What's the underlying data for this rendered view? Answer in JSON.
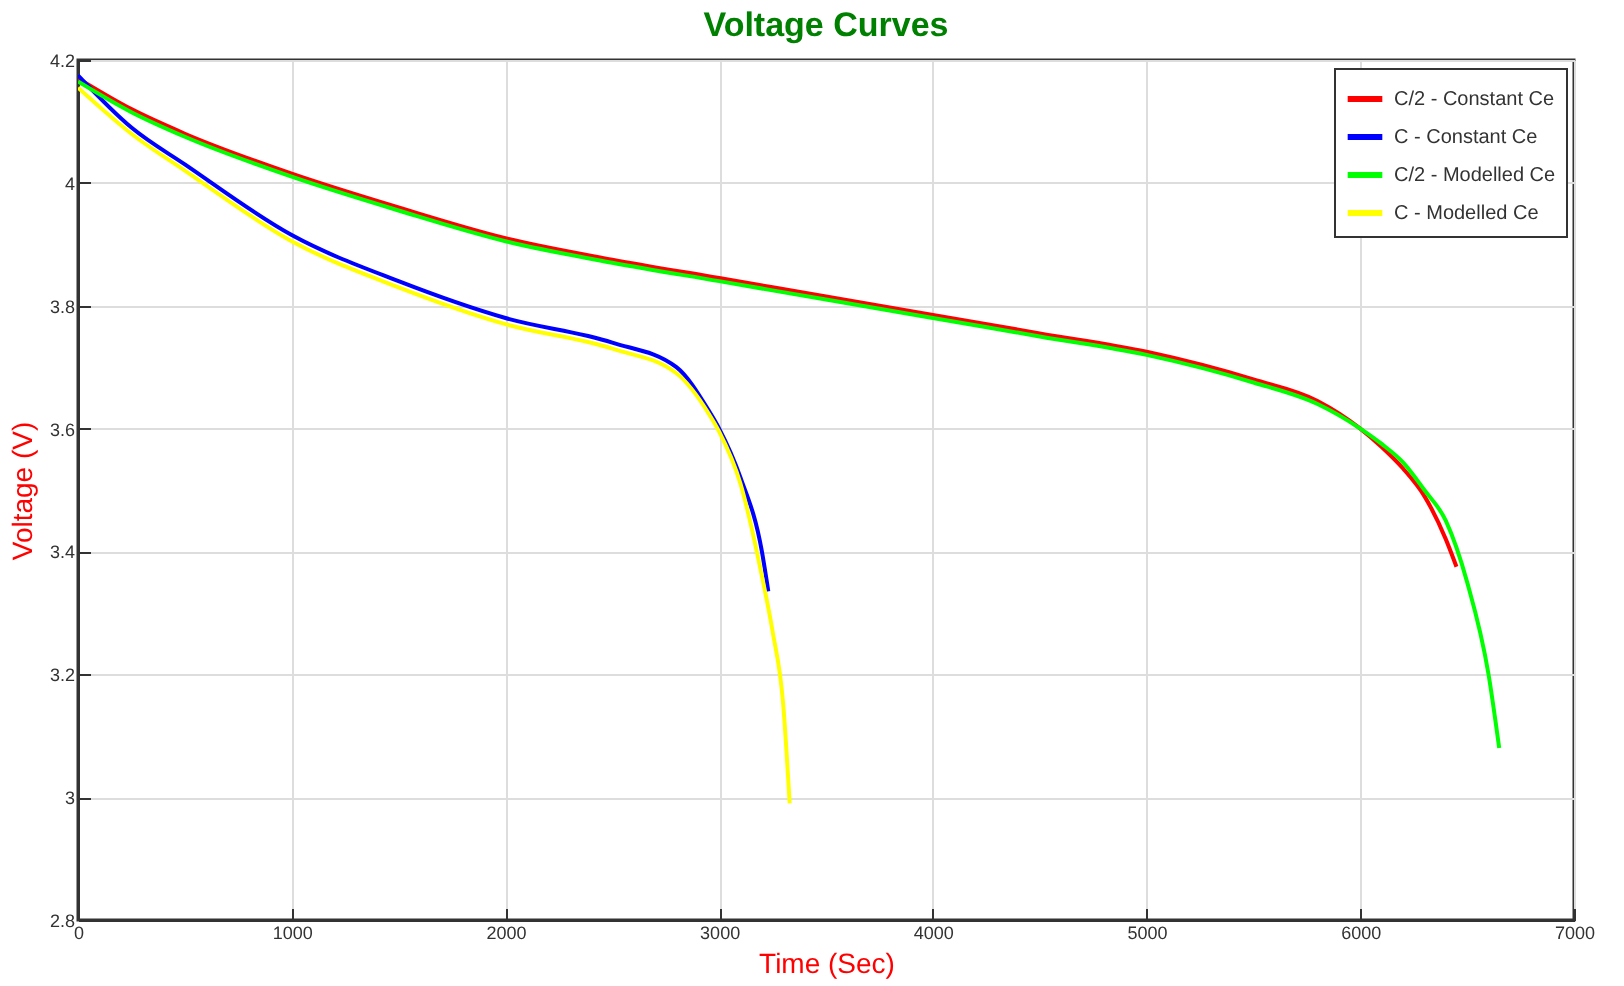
{
  "chart_data": {
    "type": "line",
    "title": "Voltage Curves",
    "xlabel": "Time (Sec)",
    "ylabel": "Voltage (V)",
    "xlim": [
      0,
      7000
    ],
    "ylim": [
      2.8,
      4.2
    ],
    "xticks": [
      0,
      1000,
      2000,
      3000,
      4000,
      5000,
      6000,
      7000
    ],
    "yticks": [
      2.8,
      3,
      3.2,
      3.4,
      3.6,
      3.8,
      4,
      4.2
    ],
    "grid": true,
    "legend": "top right",
    "line_style": "solid",
    "marker": "none",
    "series": [
      {
        "name": "C/2 - Constant Ce",
        "color": "#ff0000",
        "x": [
          0,
          250,
          500,
          1000,
          1500,
          2000,
          2500,
          3000,
          3500,
          4000,
          4500,
          5000,
          5500,
          5800,
          6000,
          6100,
          6200,
          6300,
          6400,
          6450
        ],
        "values": [
          4.17,
          4.12,
          4.08,
          4.015,
          3.96,
          3.91,
          3.875,
          3.845,
          3.815,
          3.785,
          3.755,
          3.725,
          3.68,
          3.645,
          3.6,
          3.57,
          3.535,
          3.49,
          3.42,
          3.375
        ]
      },
      {
        "name": "C - Constant Ce",
        "color": "#0000ff",
        "x": [
          0,
          250,
          500,
          1000,
          1500,
          2000,
          2500,
          2800,
          2950,
          3000,
          3100,
          3200,
          3230
        ],
        "values": [
          4.175,
          4.09,
          4.03,
          3.915,
          3.84,
          3.78,
          3.74,
          3.7,
          3.63,
          3.6,
          3.52,
          3.4,
          3.335
        ]
      },
      {
        "name": "C/2 - Modelled Ce",
        "color": "#00ff00",
        "x": [
          0,
          250,
          500,
          1000,
          1500,
          2000,
          2500,
          3000,
          3500,
          4000,
          4500,
          5000,
          5500,
          5800,
          6000,
          6100,
          6200,
          6300,
          6400,
          6500,
          6600,
          6650
        ],
        "values": [
          4.165,
          4.115,
          4.075,
          4.01,
          3.955,
          3.905,
          3.87,
          3.84,
          3.81,
          3.78,
          3.75,
          3.72,
          3.675,
          3.64,
          3.6,
          3.575,
          3.545,
          3.5,
          3.45,
          3.35,
          3.2,
          3.08
        ]
      },
      {
        "name": "C - Modelled Ce",
        "color": "#ffff00",
        "x": [
          0,
          250,
          500,
          1000,
          1500,
          2000,
          2500,
          2800,
          2950,
          3000,
          3100,
          3200,
          3250,
          3300,
          3330
        ],
        "values": [
          4.155,
          4.08,
          4.02,
          3.905,
          3.83,
          3.77,
          3.73,
          3.69,
          3.625,
          3.595,
          3.51,
          3.36,
          3.27,
          3.15,
          2.99
        ]
      }
    ]
  }
}
